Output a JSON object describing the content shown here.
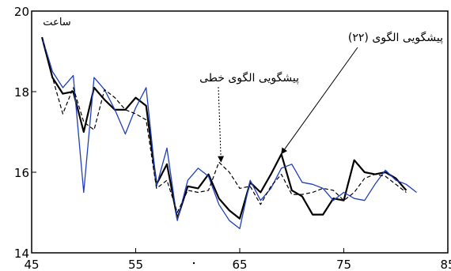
{
  "chart_data": {
    "type": "line",
    "title": "",
    "xlabel": "",
    "ylabel": "ساعت",
    "xlim": [
      45,
      85
    ],
    "ylim": [
      14,
      20
    ],
    "x_ticks": [
      45,
      55,
      65,
      75,
      85
    ],
    "y_ticks": [
      14,
      16,
      18,
      20
    ],
    "grid": false,
    "annotations": [
      {
        "text": "پیشگویی الگوی  (۲۲)",
        "target": {
          "x": 69,
          "y": 16.4
        }
      },
      {
        "text": "پیشگویی الگوی خطی",
        "target": {
          "x": 63.2,
          "y": 16.2
        }
      }
    ],
    "x": [
      46,
      47,
      48,
      49,
      50,
      51,
      52,
      53,
      54,
      55,
      56,
      57,
      58,
      59,
      60,
      61,
      62,
      63,
      64,
      65,
      66,
      67,
      68,
      69,
      70,
      71,
      72,
      73,
      74,
      75,
      76,
      77,
      78,
      79,
      80,
      81,
      82
    ],
    "series": [
      {
        "color": "#000000",
        "style": "solid-thick",
        "values": [
          19.35,
          18.35,
          17.95,
          18.0,
          17.0,
          18.1,
          17.8,
          17.55,
          17.55,
          17.85,
          17.65,
          15.7,
          16.2,
          14.85,
          15.65,
          15.6,
          15.95,
          15.35,
          15.05,
          14.85,
          15.75,
          15.5,
          15.95,
          16.45,
          15.55,
          15.4,
          14.95,
          14.95,
          15.35,
          15.3,
          16.3,
          16.0,
          15.95,
          16.0,
          15.85,
          15.55,
          null
        ]
      },
      {
        "color": "#1f3fbf",
        "style": "solid-thin",
        "values": [
          19.35,
          18.5,
          18.1,
          18.4,
          15.5,
          18.35,
          18.05,
          17.55,
          16.95,
          17.6,
          18.1,
          15.65,
          16.6,
          14.8,
          15.8,
          16.1,
          15.9,
          15.2,
          14.8,
          14.6,
          15.8,
          15.3,
          15.6,
          16.1,
          16.2,
          15.75,
          15.7,
          15.6,
          15.3,
          15.5,
          15.35,
          15.3,
          15.7,
          16.05,
          15.8,
          15.7,
          15.5
        ]
      },
      {
        "color": "#000000",
        "style": "dashed",
        "values": [
          19.35,
          18.35,
          17.45,
          18.1,
          17.25,
          17.05,
          18.05,
          17.85,
          17.55,
          17.45,
          17.3,
          15.6,
          15.8,
          15.0,
          15.55,
          15.5,
          15.55,
          16.25,
          16.0,
          15.6,
          15.65,
          15.2,
          15.65,
          15.95,
          15.45,
          15.45,
          15.5,
          15.6,
          15.55,
          15.3,
          15.5,
          15.85,
          15.95,
          15.9,
          15.7,
          15.5,
          null
        ]
      }
    ]
  }
}
